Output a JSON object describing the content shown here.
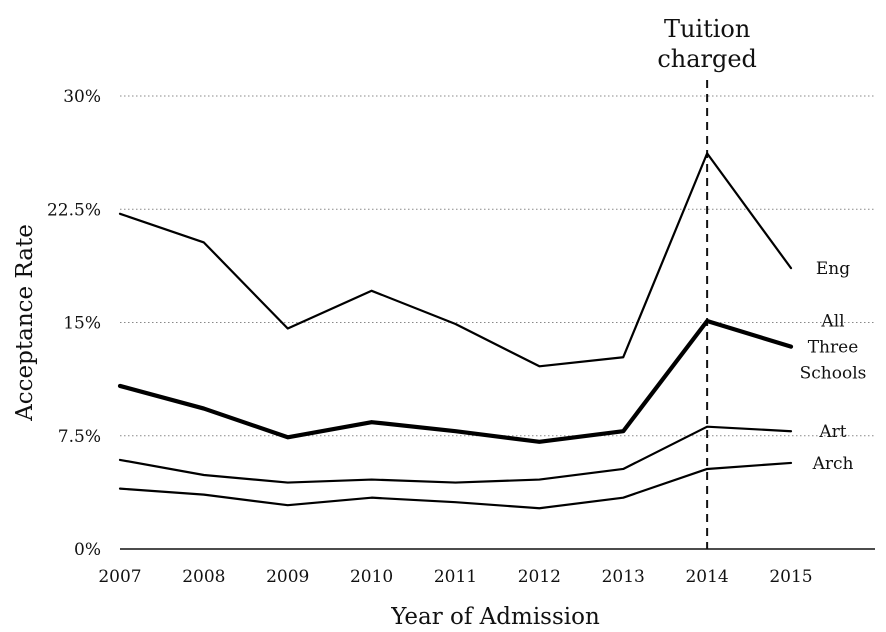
{
  "chart_data": {
    "type": "line",
    "title": "",
    "xlabel": "Year of Admission",
    "ylabel": "Acceptance Rate",
    "x": [
      2007,
      2008,
      2009,
      2010,
      2011,
      2012,
      2013,
      2014,
      2015
    ],
    "x_tick_labels": [
      "2007",
      "2008",
      "2009",
      "2010",
      "2011",
      "2012",
      "2013",
      "2014",
      "2015"
    ],
    "ylim": [
      0,
      30
    ],
    "y_ticks": [
      0,
      7.5,
      15,
      22.5,
      30
    ],
    "y_tick_labels": [
      "0%",
      "7.5%",
      "15%",
      "22.5%",
      "30%"
    ],
    "grid": "horizontal dotted",
    "series": [
      {
        "name": "Eng",
        "label_lines": [
          "Eng"
        ],
        "emphasis": "normal",
        "values": [
          22.2,
          20.3,
          14.6,
          17.1,
          14.9,
          12.1,
          12.7,
          26.2,
          18.6
        ]
      },
      {
        "name": "All Three Schools",
        "label_lines": [
          "All",
          "Three",
          "Schools"
        ],
        "emphasis": "bold",
        "values": [
          10.8,
          9.3,
          7.4,
          8.4,
          7.8,
          7.1,
          7.8,
          15.1,
          13.4
        ]
      },
      {
        "name": "Art",
        "label_lines": [
          "Art"
        ],
        "emphasis": "normal",
        "values": [
          5.9,
          4.9,
          4.4,
          4.6,
          4.4,
          4.6,
          5.3,
          8.1,
          7.8
        ]
      },
      {
        "name": "Arch",
        "label_lines": [
          "Arch"
        ],
        "emphasis": "normal",
        "values": [
          4.0,
          3.6,
          2.9,
          3.4,
          3.1,
          2.7,
          3.4,
          5.3,
          5.7
        ]
      }
    ],
    "annotations": [
      {
        "text_lines": [
          "Tuition",
          "charged"
        ],
        "x": 2014,
        "style": "vertical dashed line"
      }
    ],
    "legend": "inline labels at right end of each line"
  }
}
